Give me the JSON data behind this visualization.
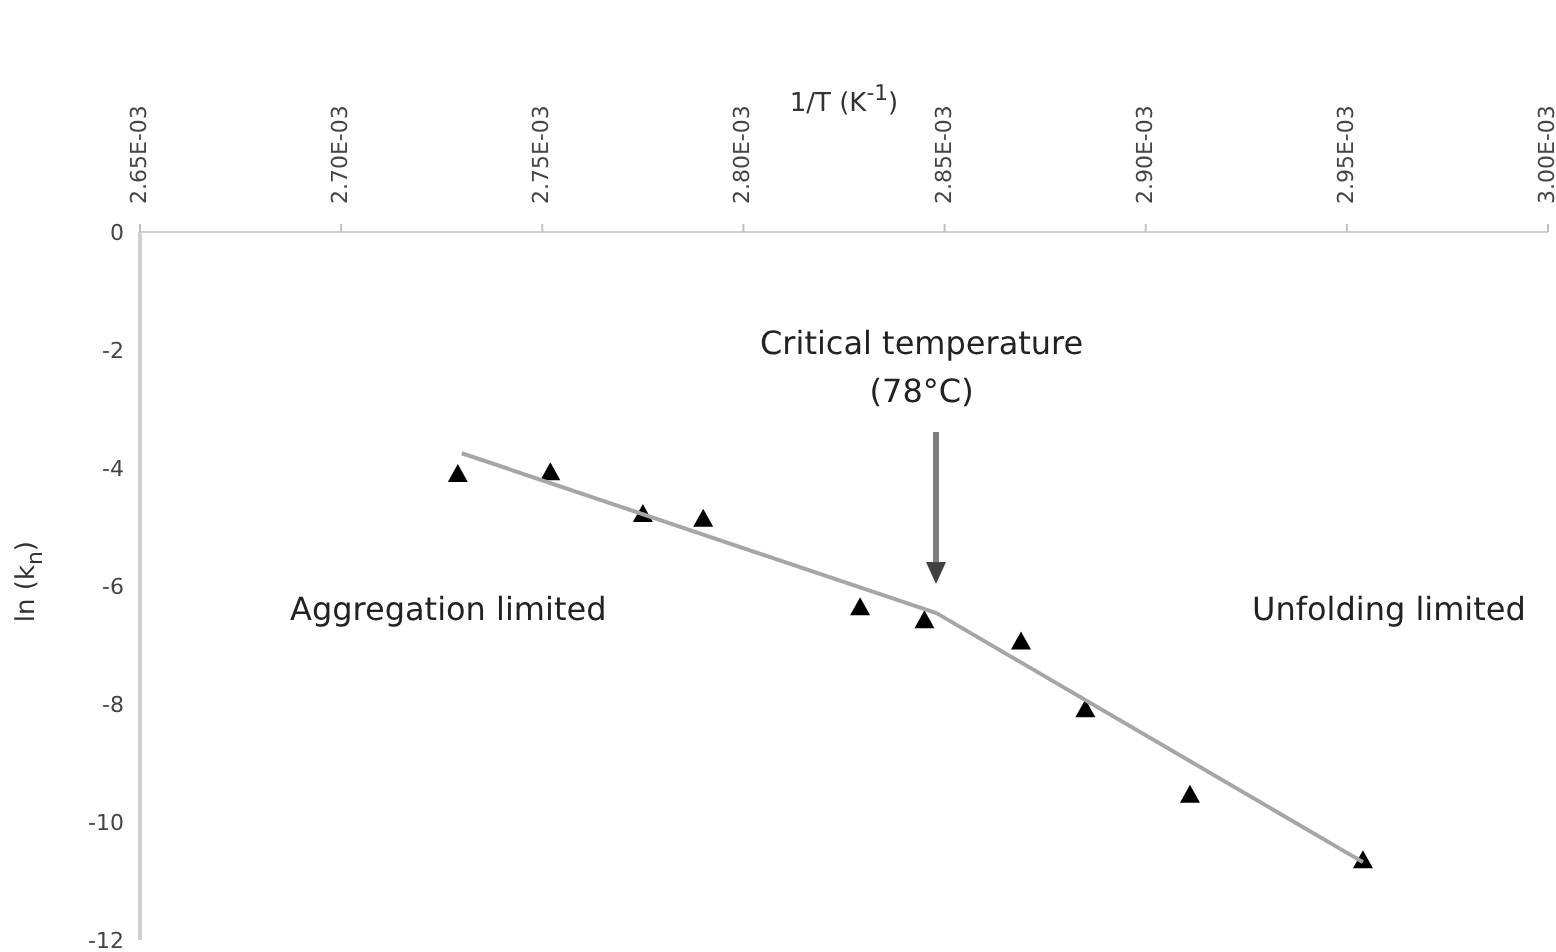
{
  "chart_data": {
    "type": "scatter",
    "xlabel": "1/T (K$^{-1}$)",
    "ylabel": "ln (k$_{n}$)",
    "xlim": [
      0.00265,
      0.003
    ],
    "xticks": [
      {
        "value": 0.00265,
        "label": "2.65E-03"
      },
      {
        "value": 0.0027,
        "label": "2.70E-03"
      },
      {
        "value": 0.00275,
        "label": "2.75E-03"
      },
      {
        "value": 0.0028,
        "label": "2.80E-03"
      },
      {
        "value": 0.00285,
        "label": "2.85E-03"
      },
      {
        "value": 0.0029,
        "label": "2.90E-03"
      },
      {
        "value": 0.00295,
        "label": "2.95E-03"
      },
      {
        "value": 0.003,
        "label": "3.00E-03"
      }
    ],
    "ylim": [
      -12,
      0
    ],
    "yticks": [
      -12,
      -10,
      -8,
      -6,
      -4,
      -2,
      0
    ],
    "grid": false,
    "legend": false,
    "marker": "triangle",
    "series": [
      {
        "color": "#000000",
        "x": [
          0.002729,
          0.002752,
          0.002775,
          0.00279,
          0.002829,
          0.002845,
          0.002869,
          0.002885,
          0.002911,
          0.002954
        ],
        "values": [
          -4.1,
          -4.07,
          -4.78,
          -4.86,
          -6.36,
          -6.58,
          -6.94,
          -8.09,
          -9.54,
          -10.65
        ]
      },
      {
        "type": "line",
        "color": "#a6a6a6",
        "marker": "none",
        "line_style": "solid",
        "x": [
          0.00273,
          0.002848,
          0.002954
        ],
        "values": [
          -3.75,
          -6.46,
          -10.68
        ]
      }
    ],
    "annotations": [
      "Critical temperature\n(78°C)",
      "Aggregation limited",
      "Unfolding limited"
    ]
  }
}
